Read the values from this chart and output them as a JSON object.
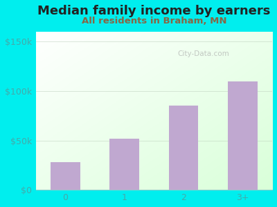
{
  "title": "Median family income by earners",
  "subtitle": "All residents in Braham, MN",
  "categories": [
    "0",
    "1",
    "2",
    "3+"
  ],
  "values": [
    28000,
    52000,
    85000,
    110000
  ],
  "bar_color": "#c0a8d0",
  "background_color": "#00EEEE",
  "plot_bg_top_left": "#d8eedd",
  "plot_bg_bottom": "#f5fff5",
  "plot_bg_white": "#ffffff",
  "title_color": "#222222",
  "subtitle_color": "#886644",
  "ytick_color": "#44aaaa",
  "xtick_color": "#44aaaa",
  "yticks": [
    0,
    50000,
    100000,
    150000
  ],
  "ytick_labels": [
    "$0",
    "$50k",
    "$100k",
    "$150k"
  ],
  "ylim": [
    0,
    160000
  ],
  "xlim": [
    -0.5,
    3.5
  ],
  "watermark": "City-Data.com",
  "title_fontsize": 13,
  "subtitle_fontsize": 9.5,
  "tick_fontsize": 9
}
